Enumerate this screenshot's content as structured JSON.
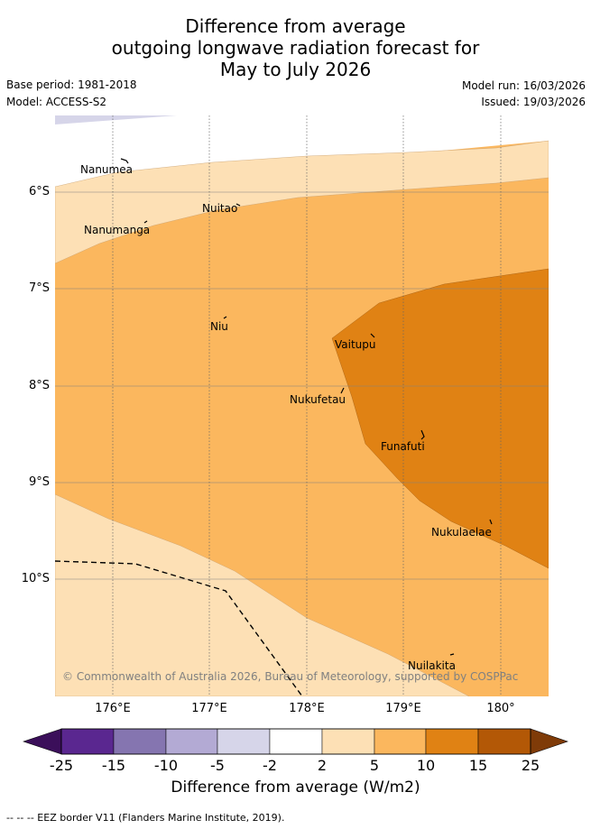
{
  "title": {
    "line1": "Difference from average",
    "line2": "outgoing longwave radiation forecast for",
    "line3": "May to July 2026"
  },
  "meta": {
    "base_period": "Base period: 1981-2018",
    "model": "Model: ACCESS-S2",
    "model_run": "Model run: 16/03/2026",
    "issued": "Issued: 19/03/2026"
  },
  "axes": {
    "latitudes": [
      "6°S",
      "7°S",
      "8°S",
      "9°S",
      "10°S"
    ],
    "longitudes": [
      "176°E",
      "177°E",
      "178°E",
      "179°E",
      "180°"
    ]
  },
  "islands": [
    "Nanumea",
    "Nuitao",
    "Nanumanga",
    "Niu",
    "Vaitupu",
    "Nukufetau",
    "Funafuti",
    "Nukulaelae",
    "Nuilakita"
  ],
  "copyright": "© Commonwealth of Australia 2026, Bureau of Meteorology, supported by COSPPac",
  "colorbar": {
    "ticks": [
      "-25",
      "-15",
      "-10",
      "-5",
      "-2",
      "2",
      "5",
      "10",
      "15",
      "25"
    ],
    "label": "Difference from average (W/m2)",
    "colors": {
      "below_min": "#3b0f5a",
      "bin_m25_m15": "#5a2790",
      "bin_m15_m10": "#8575b0",
      "bin_m10_m5": "#b3aad4",
      "bin_m5_m2": "#d6d5e9",
      "bin_m2_2": "#ffffff",
      "bin_2_5": "#fde0b5",
      "bin_5_10": "#fbb75e",
      "bin_10_15": "#e08214",
      "bin_15_25": "#b35806",
      "above_max": "#7f3b08"
    }
  },
  "footer": "--  --  -- EEZ border V11 (Flanders Marine Institute, 2019)."
}
